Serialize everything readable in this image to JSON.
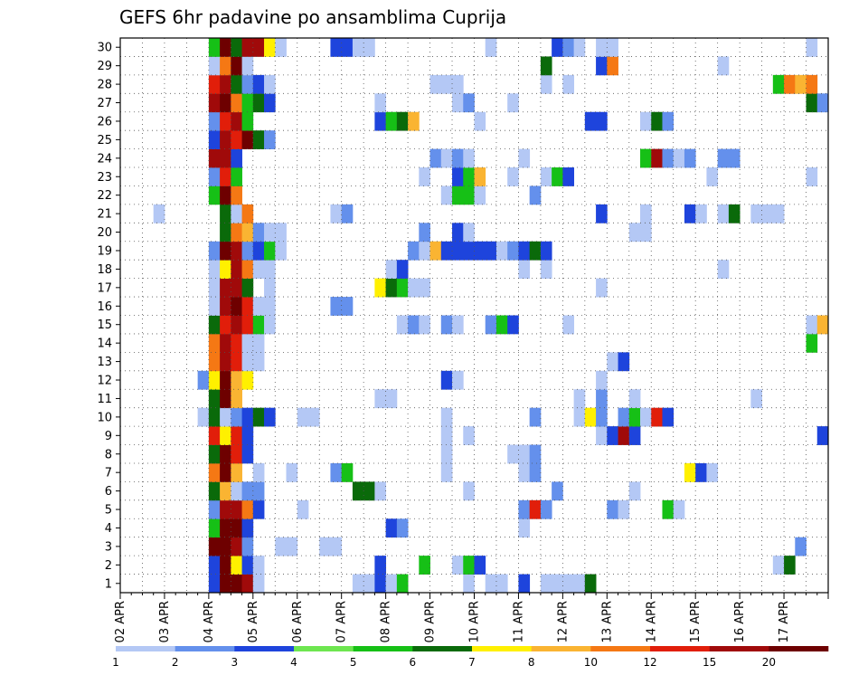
{
  "chart_data": {
    "type": "heatmap",
    "title": "GEFS 6hr padavine po ansamblima Cuprija",
    "xlabel": "",
    "ylabel": "",
    "x_ticks": [
      "02 APR",
      "03 APR",
      "04 APR",
      "05 APR",
      "06 APR",
      "07 APR",
      "08 APR",
      "09 APR",
      "10 APR",
      "11 APR",
      "12 APR",
      "13 APR",
      "14 APR",
      "15 APR",
      "16 APR",
      "17 APR"
    ],
    "y_ticks": [
      1,
      2,
      3,
      4,
      5,
      6,
      7,
      8,
      9,
      10,
      11,
      12,
      13,
      14,
      15,
      16,
      17,
      18,
      19,
      20,
      21,
      22,
      23,
      24,
      25,
      26,
      27,
      28,
      29,
      30
    ],
    "x_range": [
      "02 APR 00Z",
      "17 APR 18Z"
    ],
    "y_range": [
      1,
      30
    ],
    "x_step_hours": 6,
    "grid": true,
    "legend": {
      "placement": "bottom",
      "boundaries": [
        "1",
        "2",
        "3",
        "4",
        "5",
        "6",
        "7",
        "8",
        "10",
        "12",
        "15",
        "20"
      ],
      "colors": [
        "#b4c8f5",
        "#6490ec",
        "#1e44dc",
        "#6ee650",
        "#16c016",
        "#0a6a0a",
        "#fff000",
        "#fab432",
        "#f57814",
        "#e11e0a",
        "#a00a0a",
        "#6e0000"
      ]
    },
    "members": [
      {
        "m": 1,
        "c": {
          "04 APR 00Z": 3,
          "04 APR 06Z": 21,
          "04 APR 12Z": 21,
          "04 APR 18Z": 15,
          "05 APR 00Z": 1,
          "07 APR 06Z": 1,
          "07 APR 12Z": 1,
          "07 APR 18Z": 3,
          "08 APR 00Z": 1,
          "08 APR 06Z": 5,
          "09 APR 18Z": 1,
          "10 APR 06Z": 1,
          "10 APR 12Z": 1,
          "11 APR 00Z": 3,
          "11 APR 12Z": 1,
          "11 APR 18Z": 1,
          "12 APR 00Z": 1,
          "12 APR 06Z": 1,
          "12 APR 12Z": 6
        }
      },
      {
        "m": 2,
        "c": {
          "04 APR 00Z": 3,
          "04 APR 06Z": 20,
          "04 APR 12Z": 7,
          "04 APR 18Z": 3,
          "05 APR 00Z": 1,
          "07 APR 18Z": 3,
          "08 APR 18Z": 5,
          "09 APR 12Z": 1,
          "09 APR 18Z": 5,
          "10 APR 00Z": 3,
          "16 APR 18Z": 1,
          "17 APR 00Z": 6
        }
      },
      {
        "m": 3,
        "c": {
          "04 APR 00Z": 20,
          "04 APR 06Z": 20,
          "04 APR 12Z": 15,
          "04 APR 18Z": 2,
          "05 APR 12Z": 1,
          "05 APR 18Z": 1,
          "06 APR 12Z": 1,
          "06 APR 18Z": 1,
          "17 APR 06Z": 2
        }
      },
      {
        "m": 4,
        "c": {
          "04 APR 00Z": 5,
          "04 APR 06Z": 20,
          "04 APR 12Z": 20,
          "04 APR 18Z": 3,
          "08 APR 00Z": 3,
          "08 APR 06Z": 2,
          "11 APR 00Z": 1
        }
      },
      {
        "m": 5,
        "c": {
          "04 APR 00Z": 2,
          "04 APR 06Z": 15,
          "04 APR 12Z": 15,
          "04 APR 18Z": 10,
          "05 APR 00Z": 3,
          "06 APR 00Z": 1,
          "11 APR 00Z": 2,
          "11 APR 06Z": 12,
          "11 APR 12Z": 2,
          "13 APR 00Z": 2,
          "13 APR 06Z": 1,
          "14 APR 06Z": 5,
          "14 APR 12Z": 1
        }
      },
      {
        "m": 6,
        "c": {
          "04 APR 00Z": 6,
          "04 APR 06Z": 8,
          "04 APR 12Z": 1,
          "04 APR 18Z": 2,
          "05 APR 00Z": 2,
          "07 APR 06Z": 6,
          "07 APR 12Z": 6,
          "07 APR 18Z": 1,
          "09 APR 18Z": 1,
          "11 APR 18Z": 2,
          "13 APR 12Z": 1
        }
      },
      {
        "m": 7,
        "c": {
          "04 APR 00Z": 10,
          "04 APR 06Z": 20,
          "04 APR 12Z": 8,
          "05 APR 00Z": 1,
          "05 APR 18Z": 1,
          "06 APR 18Z": 2,
          "07 APR 00Z": 5,
          "09 APR 06Z": 1,
          "11 APR 00Z": 1,
          "11 APR 06Z": 2,
          "14 APR 18Z": 7,
          "15 APR 00Z": 3,
          "15 APR 06Z": 1
        }
      },
      {
        "m": 8,
        "c": {
          "04 APR 00Z": 6,
          "04 APR 06Z": 20,
          "04 APR 12Z": 12,
          "04 APR 18Z": 3,
          "09 APR 06Z": 1,
          "10 APR 18Z": 1,
          "11 APR 00Z": 1,
          "11 APR 06Z": 2
        }
      },
      {
        "m": 9,
        "c": {
          "04 APR 00Z": 12,
          "04 APR 06Z": 7,
          "04 APR 12Z": 12,
          "04 APR 18Z": 3,
          "09 APR 06Z": 1,
          "09 APR 18Z": 1,
          "12 APR 18Z": 1,
          "13 APR 00Z": 3,
          "13 APR 06Z": 15,
          "13 APR 12Z": 3,
          "17 APR 18Z": 3
        }
      },
      {
        "m": 10,
        "c": {
          "03 APR 18Z": 1,
          "04 APR 00Z": 6,
          "04 APR 06Z": 1,
          "04 APR 12Z": 2,
          "04 APR 18Z": 3,
          "05 APR 00Z": 6,
          "05 APR 06Z": 3,
          "06 APR 00Z": 1,
          "06 APR 06Z": 1,
          "09 APR 06Z": 1,
          "11 APR 06Z": 2,
          "12 APR 06Z": 1,
          "12 APR 12Z": 7,
          "12 APR 18Z": 2,
          "13 APR 06Z": 2,
          "13 APR 12Z": 5,
          "13 APR 18Z": 1,
          "14 APR 00Z": 12,
          "14 APR 06Z": 3
        }
      },
      {
        "m": 11,
        "c": {
          "04 APR 00Z": 6,
          "04 APR 06Z": 20,
          "04 APR 12Z": 8,
          "07 APR 18Z": 1,
          "08 APR 00Z": 1,
          "12 APR 06Z": 1,
          "12 APR 18Z": 2,
          "13 APR 12Z": 1,
          "16 APR 06Z": 1
        }
      },
      {
        "m": 12,
        "c": {
          "03 APR 18Z": 2,
          "04 APR 00Z": 7,
          "04 APR 06Z": 20,
          "04 APR 12Z": 8,
          "04 APR 18Z": 7,
          "09 APR 06Z": 3,
          "09 APR 12Z": 1,
          "12 APR 18Z": 1
        }
      },
      {
        "m": 13,
        "c": {
          "04 APR 00Z": 10,
          "04 APR 06Z": 15,
          "04 APR 12Z": 12,
          "04 APR 18Z": 1,
          "05 APR 00Z": 1,
          "13 APR 00Z": 1,
          "13 APR 06Z": 3
        }
      },
      {
        "m": 14,
        "c": {
          "04 APR 00Z": 10,
          "04 APR 06Z": 15,
          "04 APR 12Z": 12,
          "04 APR 18Z": 1,
          "05 APR 00Z": 1,
          "17 APR 12Z": 5
        }
      },
      {
        "m": 15,
        "c": {
          "04 APR 00Z": 6,
          "04 APR 06Z": 12,
          "04 APR 12Z": 15,
          "04 APR 18Z": 12,
          "05 APR 00Z": 5,
          "05 APR 06Z": 1,
          "08 APR 06Z": 1,
          "08 APR 12Z": 2,
          "08 APR 18Z": 1,
          "09 APR 06Z": 2,
          "09 APR 12Z": 1,
          "10 APR 06Z": 2,
          "10 APR 12Z": 5,
          "10 APR 18Z": 3,
          "12 APR 00Z": 1,
          "17 APR 12Z": 1,
          "17 APR 18Z": 8
        }
      },
      {
        "m": 16,
        "c": {
          "04 APR 00Z": 1,
          "04 APR 06Z": 15,
          "04 APR 12Z": 20,
          "04 APR 18Z": 12,
          "05 APR 00Z": 1,
          "05 APR 06Z": 1,
          "06 APR 18Z": 2,
          "07 APR 00Z": 2
        }
      },
      {
        "m": 17,
        "c": {
          "04 APR 00Z": 1,
          "04 APR 06Z": 15,
          "04 APR 12Z": 15,
          "04 APR 18Z": 6,
          "05 APR 06Z": 1,
          "07 APR 18Z": 7,
          "08 APR 00Z": 6,
          "08 APR 06Z": 5,
          "08 APR 12Z": 1,
          "08 APR 18Z": 1,
          "12 APR 18Z": 1
        }
      },
      {
        "m": 18,
        "c": {
          "04 APR 00Z": 1,
          "04 APR 06Z": 7,
          "04 APR 12Z": 15,
          "04 APR 18Z": 10,
          "05 APR 00Z": 1,
          "05 APR 06Z": 1,
          "08 APR 00Z": 1,
          "08 APR 06Z": 3,
          "11 APR 00Z": 1,
          "11 APR 12Z": 1,
          "15 APR 12Z": 1
        }
      },
      {
        "m": 19,
        "c": {
          "04 APR 00Z": 2,
          "04 APR 06Z": 20,
          "04 APR 12Z": 15,
          "04 APR 18Z": 2,
          "05 APR 00Z": 3,
          "05 APR 06Z": 5,
          "05 APR 12Z": 1,
          "08 APR 12Z": 2,
          "08 APR 18Z": 1,
          "09 APR 00Z": 8,
          "09 APR 06Z": 3,
          "09 APR 12Z": 3,
          "09 APR 18Z": 3,
          "10 APR 00Z": 3,
          "10 APR 06Z": 3,
          "10 APR 12Z": 1,
          "10 APR 18Z": 2,
          "11 APR 00Z": 3,
          "11 APR 06Z": 6,
          "11 APR 12Z": 3
        }
      },
      {
        "m": 20,
        "c": {
          "04 APR 06Z": 6,
          "04 APR 12Z": 10,
          "04 APR 18Z": 8,
          "05 APR 00Z": 2,
          "05 APR 06Z": 1,
          "05 APR 12Z": 1,
          "08 APR 18Z": 2,
          "09 APR 12Z": 3,
          "09 APR 18Z": 1,
          "13 APR 12Z": 1,
          "13 APR 18Z": 1
        }
      },
      {
        "m": 21,
        "c": {
          "02 APR 18Z": 1,
          "04 APR 06Z": 6,
          "04 APR 12Z": 1,
          "04 APR 18Z": 10,
          "06 APR 18Z": 1,
          "07 APR 00Z": 2,
          "12 APR 18Z": 3,
          "13 APR 18Z": 1,
          "14 APR 18Z": 3,
          "15 APR 00Z": 1,
          "15 APR 12Z": 1,
          "15 APR 18Z": 6,
          "16 APR 06Z": 1,
          "16 APR 12Z": 1,
          "16 APR 18Z": 1
        }
      },
      {
        "m": 22,
        "c": {
          "04 APR 00Z": 5,
          "04 APR 06Z": 20,
          "04 APR 12Z": 10,
          "09 APR 06Z": 1,
          "09 APR 12Z": 5,
          "09 APR 18Z": 5,
          "10 APR 00Z": 1,
          "11 APR 06Z": 2
        }
      },
      {
        "m": 23,
        "c": {
          "04 APR 00Z": 2,
          "04 APR 06Z": 12,
          "04 APR 12Z": 5,
          "08 APR 18Z": 1,
          "09 APR 12Z": 3,
          "09 APR 18Z": 5,
          "10 APR 00Z": 8,
          "10 APR 18Z": 1,
          "11 APR 12Z": 1,
          "11 APR 18Z": 5,
          "12 APR 00Z": 3,
          "15 APR 06Z": 1,
          "17 APR 12Z": 1
        }
      },
      {
        "m": 24,
        "c": {
          "04 APR 00Z": 15,
          "04 APR 06Z": 15,
          "04 APR 12Z": 3,
          "09 APR 00Z": 2,
          "09 APR 06Z": 1,
          "09 APR 12Z": 2,
          "09 APR 18Z": 1,
          "11 APR 00Z": 1,
          "13 APR 18Z": 5,
          "14 APR 00Z": 15,
          "14 APR 06Z": 2,
          "14 APR 12Z": 1,
          "14 APR 18Z": 2,
          "15 APR 12Z": 2,
          "15 APR 18Z": 2
        }
      },
      {
        "m": 25,
        "c": {
          "04 APR 00Z": 3,
          "04 APR 06Z": 15,
          "04 APR 12Z": 12,
          "04 APR 18Z": 20,
          "05 APR 00Z": 6,
          "05 APR 06Z": 2
        }
      },
      {
        "m": 26,
        "c": {
          "04 APR 00Z": 2,
          "04 APR 06Z": 12,
          "04 APR 12Z": 15,
          "04 APR 18Z": 5,
          "07 APR 18Z": 3,
          "08 APR 00Z": 5,
          "08 APR 06Z": 6,
          "08 APR 12Z": 8,
          "10 APR 00Z": 1,
          "12 APR 12Z": 3,
          "12 APR 18Z": 3,
          "13 APR 18Z": 1,
          "14 APR 00Z": 6,
          "14 APR 06Z": 2
        }
      },
      {
        "m": 27,
        "c": {
          "04 APR 00Z": 15,
          "04 APR 06Z": 20,
          "04 APR 12Z": 10,
          "04 APR 18Z": 5,
          "05 APR 00Z": 6,
          "05 APR 06Z": 3,
          "07 APR 18Z": 1,
          "09 APR 12Z": 1,
          "09 APR 18Z": 2,
          "10 APR 18Z": 1,
          "17 APR 12Z": 6,
          "17 APR 18Z": 2
        }
      },
      {
        "m": 28,
        "c": {
          "04 APR 00Z": 12,
          "04 APR 06Z": 15,
          "04 APR 12Z": 6,
          "04 APR 18Z": 2,
          "05 APR 00Z": 3,
          "05 APR 06Z": 1,
          "09 APR 00Z": 1,
          "09 APR 06Z": 1,
          "09 APR 12Z": 1,
          "11 APR 12Z": 1,
          "12 APR 00Z": 1,
          "16 APR 18Z": 5,
          "17 APR 00Z": 10,
          "17 APR 06Z": 8,
          "17 APR 12Z": 10
        }
      },
      {
        "m": 29,
        "c": {
          "04 APR 00Z": 1,
          "04 APR 06Z": 10,
          "04 APR 12Z": 20,
          "04 APR 18Z": 1,
          "11 APR 12Z": 6,
          "12 APR 18Z": 3,
          "13 APR 00Z": 10,
          "15 APR 12Z": 1
        }
      },
      {
        "m": 30,
        "c": {
          "04 APR 00Z": 5,
          "04 APR 06Z": 20,
          "04 APR 12Z": 6,
          "04 APR 18Z": 15,
          "05 APR 00Z": 15,
          "05 APR 06Z": 7,
          "05 APR 12Z": 1,
          "06 APR 18Z": 3,
          "07 APR 00Z": 3,
          "07 APR 06Z": 1,
          "07 APR 12Z": 1,
          "10 APR 06Z": 1,
          "11 APR 18Z": 3,
          "12 APR 00Z": 2,
          "12 APR 06Z": 1,
          "12 APR 18Z": 1,
          "13 APR 00Z": 1,
          "17 APR 12Z": 1
        }
      }
    ]
  }
}
